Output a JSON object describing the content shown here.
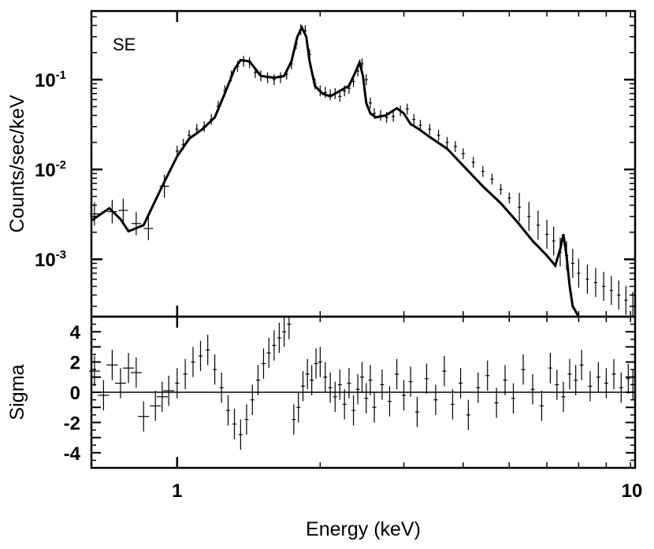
{
  "chart_data": {
    "type": "line",
    "panel_label": "SE",
    "xlabel": "Energy (keV)",
    "x_scale": "log",
    "xlim": [
      0.66,
      9.2
    ],
    "x_ticks": [
      {
        "value": 1,
        "label": "1"
      },
      {
        "value": 10,
        "label": "10"
      }
    ],
    "top": {
      "ylabel": "Counts/sec/keV",
      "y_scale": "log",
      "ylim": [
        0.00023,
        0.58
      ],
      "y_ticks": [
        {
          "value": 0.1,
          "base": "10",
          "exp": "-1"
        },
        {
          "value": 0.01,
          "base": "10",
          "exp": "-2"
        },
        {
          "value": 0.001,
          "base": "10",
          "exp": "-3"
        }
      ],
      "series": [
        {
          "kind": "model",
          "x": [
            0.66,
            0.72,
            0.76,
            0.79,
            0.85,
            0.93,
            1.0,
            1.06,
            1.13,
            1.2,
            1.26,
            1.32,
            1.36,
            1.42,
            1.5,
            1.6,
            1.68,
            1.74,
            1.79,
            1.83,
            1.87,
            1.9,
            1.95,
            2.02,
            2.1,
            2.2,
            2.3,
            2.37,
            2.42,
            2.46,
            2.5,
            2.55,
            2.62,
            2.75,
            2.9,
            3.0,
            3.1,
            3.2,
            3.4,
            3.7,
            4.0,
            4.4,
            4.8,
            5.2,
            5.6,
            6.0,
            6.25,
            6.4,
            6.5,
            6.6,
            6.7,
            6.8,
            7.0
          ],
          "y": [
            0.0027,
            0.0037,
            0.0028,
            0.00205,
            0.0024,
            0.0065,
            0.014,
            0.022,
            0.028,
            0.038,
            0.07,
            0.13,
            0.165,
            0.16,
            0.11,
            0.105,
            0.11,
            0.16,
            0.3,
            0.38,
            0.3,
            0.16,
            0.085,
            0.07,
            0.065,
            0.075,
            0.085,
            0.12,
            0.155,
            0.11,
            0.055,
            0.042,
            0.038,
            0.04,
            0.048,
            0.042,
            0.032,
            0.029,
            0.023,
            0.017,
            0.011,
            0.0065,
            0.0042,
            0.0026,
            0.0016,
            0.0011,
            0.00085,
            0.0013,
            0.0019,
            0.0011,
            0.0005,
            0.0003,
            0.0002
          ]
        },
        {
          "kind": "data",
          "x": [
            0.67,
            0.73,
            0.77,
            0.82,
            0.87,
            0.94,
            1.0,
            1.03,
            1.06,
            1.1,
            1.14,
            1.18,
            1.22,
            1.26,
            1.3,
            1.34,
            1.38,
            1.42,
            1.46,
            1.5,
            1.55,
            1.6,
            1.65,
            1.7,
            1.74,
            1.78,
            1.82,
            1.86,
            1.9,
            1.95,
            2.0,
            2.05,
            2.1,
            2.15,
            2.2,
            2.25,
            2.3,
            2.35,
            2.4,
            2.45,
            2.5,
            2.55,
            2.6,
            2.68,
            2.76,
            2.85,
            2.95,
            3.05,
            3.15,
            3.25,
            3.4,
            3.55,
            3.7,
            3.85,
            4.0,
            4.2,
            4.4,
            4.6,
            4.8,
            5.0,
            5.25,
            5.5,
            5.75,
            6.0,
            6.2,
            6.4,
            6.6,
            6.8,
            7.0,
            7.3,
            7.6,
            7.9,
            8.2,
            8.5,
            8.8,
            9.1
          ],
          "y": [
            0.0032,
            0.0034,
            0.0035,
            0.0025,
            0.0022,
            0.0065,
            0.016,
            0.019,
            0.024,
            0.028,
            0.03,
            0.036,
            0.05,
            0.075,
            0.11,
            0.14,
            0.16,
            0.155,
            0.12,
            0.11,
            0.105,
            0.1,
            0.105,
            0.115,
            0.15,
            0.25,
            0.36,
            0.35,
            0.19,
            0.09,
            0.075,
            0.072,
            0.068,
            0.07,
            0.065,
            0.075,
            0.08,
            0.095,
            0.125,
            0.15,
            0.1,
            0.055,
            0.042,
            0.04,
            0.038,
            0.039,
            0.045,
            0.047,
            0.036,
            0.031,
            0.028,
            0.024,
            0.02,
            0.018,
            0.015,
            0.012,
            0.0095,
            0.0078,
            0.006,
            0.0048,
            0.0038,
            0.003,
            0.0024,
            0.0019,
            0.0016,
            0.0012,
            0.0011,
            0.0009,
            0.0007,
            0.0006,
            0.00055,
            0.0005,
            0.00045,
            0.0004,
            0.00035,
            0.0003
          ]
        }
      ]
    },
    "bottom": {
      "ylabel": "Sigma",
      "ylim": [
        -5,
        5
      ],
      "y_ticks": [
        {
          "value": 4,
          "label": "4"
        },
        {
          "value": 2,
          "label": "2"
        },
        {
          "value": 0,
          "label": "0"
        },
        {
          "value": -2,
          "label": "-2"
        },
        {
          "value": -4,
          "label": "-4"
        }
      ],
      "zero_line": true,
      "series": [
        {
          "kind": "residuals",
          "x": [
            0.67,
            0.7,
            0.73,
            0.76,
            0.79,
            0.82,
            0.85,
            0.9,
            0.93,
            0.96,
            1.0,
            1.04,
            1.08,
            1.12,
            1.16,
            1.2,
            1.24,
            1.28,
            1.32,
            1.36,
            1.4,
            1.44,
            1.48,
            1.52,
            1.56,
            1.6,
            1.64,
            1.68,
            1.72,
            1.76,
            1.8,
            1.84,
            1.88,
            1.92,
            1.96,
            2.0,
            2.05,
            2.1,
            2.15,
            2.2,
            2.25,
            2.3,
            2.35,
            2.4,
            2.45,
            2.5,
            2.55,
            2.6,
            2.7,
            2.8,
            2.9,
            3.0,
            3.1,
            3.2,
            3.35,
            3.5,
            3.65,
            3.8,
            3.95,
            4.1,
            4.3,
            4.5,
            4.7,
            4.9,
            5.1,
            5.35,
            5.6,
            5.85,
            6.1,
            6.3,
            6.5,
            6.7,
            6.9,
            7.1,
            7.4,
            7.7,
            8.0,
            8.3,
            8.6,
            8.9,
            9.1
          ],
          "y": [
            1.4,
            -0.2,
            1.8,
            0.6,
            1.6,
            1.3,
            -1.6,
            -0.9,
            -0.3,
            0.1,
            0.6,
            1.2,
            2.0,
            2.4,
            2.8,
            1.5,
            0.3,
            -1.2,
            -2.1,
            -2.8,
            -1.8,
            -0.5,
            0.8,
            1.9,
            2.6,
            3.1,
            3.6,
            4.0,
            4.5,
            -1.8,
            -1.0,
            0.4,
            1.2,
            0.8,
            1.9,
            2.0,
            1.0,
            0.3,
            -0.3,
            0.5,
            -0.8,
            0.6,
            -1.2,
            0.2,
            1.0,
            -0.4,
            0.8,
            -1.0,
            0.5,
            -0.6,
            1.2,
            -0.2,
            0.7,
            -1.3,
            0.9,
            -0.5,
            1.4,
            -0.8,
            0.6,
            -1.5,
            0.3,
            1.1,
            -0.7,
            0.8,
            -0.4,
            1.5,
            0.2,
            -0.9,
            1.6,
            0.5,
            -0.3,
            1.2,
            0.8,
            1.8,
            0.4,
            1.0,
            0.6,
            1.2,
            0.3,
            0.9,
            0.5
          ]
        }
      ]
    }
  }
}
